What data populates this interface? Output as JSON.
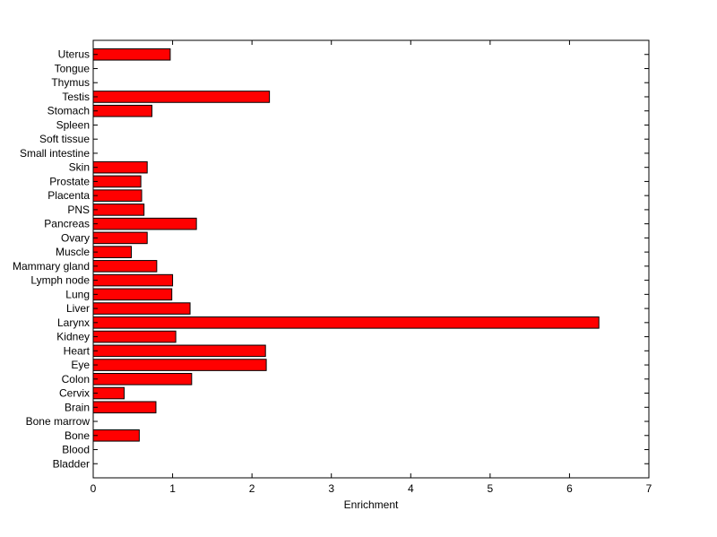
{
  "chart_data": {
    "type": "bar",
    "orientation": "horizontal",
    "title": "",
    "xlabel": "Enrichment",
    "ylabel": "",
    "xlim": [
      0,
      7
    ],
    "x_ticks": [
      0,
      1,
      2,
      3,
      4,
      5,
      6,
      7
    ],
    "grid": false,
    "bar_color": "#ff0000",
    "bar_edge_color": "#000000",
    "categories": [
      "Bladder",
      "Blood",
      "Bone",
      "Bone marrow",
      "Brain",
      "Cervix",
      "Colon",
      "Eye",
      "Heart",
      "Kidney",
      "Larynx",
      "Liver",
      "Lung",
      "Lymph node",
      "Mammary gland",
      "Muscle",
      "Ovary",
      "Pancreas",
      "PNS",
      "Placenta",
      "Prostate",
      "Skin",
      "Small intestine",
      "Soft tissue",
      "Spleen",
      "Stomach",
      "Testis",
      "Thymus",
      "Tongue",
      "Uterus"
    ],
    "values": [
      0,
      0,
      0.58,
      0,
      0.79,
      0.39,
      1.24,
      2.18,
      2.17,
      1.04,
      6.37,
      1.22,
      0.99,
      1.0,
      0.8,
      0.48,
      0.68,
      1.3,
      0.64,
      0.61,
      0.6,
      0.68,
      0,
      0,
      0,
      0.74,
      2.22,
      0,
      0,
      0.97
    ]
  }
}
